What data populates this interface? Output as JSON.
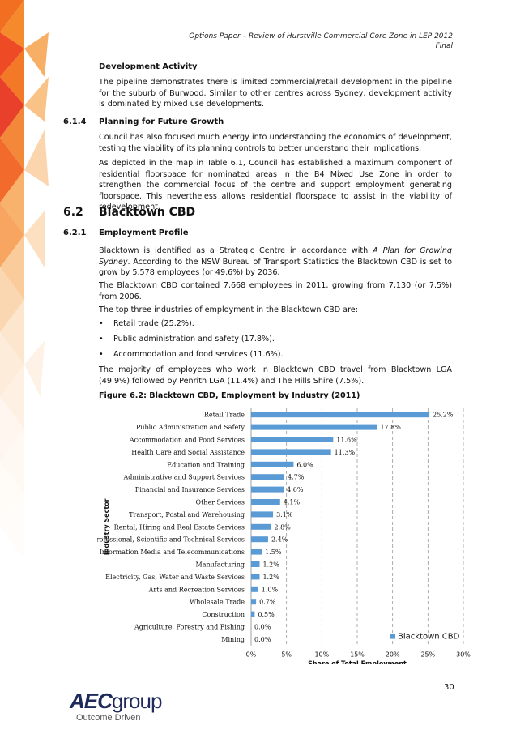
{
  "header": {
    "line1": "Options Paper – Review of Hurstville Commercial Core Zone in LEP 2012",
    "line2": "Final"
  },
  "dev_activity": {
    "heading": "Development Activity",
    "para": "The pipeline demonstrates there is limited commercial/retail development in the pipeline for the suburb of Burwood. Similar to other centres across Sydney, development activity is dominated by mixed use developments."
  },
  "s614": {
    "num": "6.1.4",
    "title": "Planning for Future Growth",
    "para1": "Council has also focused much energy into understanding the economics of development, testing the viability of its planning controls to better understand their implications.",
    "para2": "As depicted in the map in Table 6.1, Council has established a maximum component of residential floorspace for nominated areas in the B4 Mixed Use Zone in order to strengthen the commercial focus of the centre and support employment generating floorspace. This nevertheless allows residential floorspace to assist in the viability of redevelopment."
  },
  "s62": {
    "num": "6.2",
    "title": "Blacktown CBD"
  },
  "s621": {
    "num": "6.2.1",
    "title": "Employment Profile",
    "para1_a": "Blacktown is identified as a Strategic Centre in accordance with ",
    "para1_italic": "A Plan for Growing Sydney",
    "para1_b": ". According to the NSW Bureau of Transport Statistics the Blacktown CBD is set to grow by 5,578 employees (or 49.6%) by 2036.",
    "para2": "The Blacktown CBD contained 7,668 employees in 2011, growing from 7,130 (or 7.5%) from 2006.",
    "para3": "The top three industries of employment in the Blacktown CBD are:",
    "bullets": [
      "Retail trade (25.2%).",
      "Public administration and safety (17.8%).",
      "Accommodation and food services (11.6%)."
    ],
    "para4": "The majority of employees who work in Blacktown CBD travel from Blacktown LGA (49.9%) followed by Penrith LGA (11.4%) and The Hills Shire (7.5%)."
  },
  "figure_caption": "Figure 6.2: Blacktown CBD, Employment by Industry (2011)",
  "chart_data": {
    "type": "bar",
    "orientation": "horizontal",
    "categories": [
      "Retail Trade",
      "Public Administration and Safety",
      "Accommodation and Food Services",
      "Health Care and Social Assistance",
      "Education and Training",
      "Administrative and Support Services",
      "Financial and Insurance Services",
      "Other Services",
      "Transport, Postal and Warehousing",
      "Rental, Hiring and Real Estate Services",
      "Professional, Scientific and Technical Services",
      "Information Media and Telecommunications",
      "Manufacturing",
      "Electricity, Gas, Water and Waste Services",
      "Arts and Recreation Services",
      "Wholesale Trade",
      "Construction",
      "Agriculture, Forestry and Fishing",
      "Mining"
    ],
    "series": [
      {
        "name": "Blacktown CBD",
        "values": [
          25.2,
          17.8,
          11.6,
          11.3,
          6.0,
          4.7,
          4.6,
          4.1,
          3.1,
          2.8,
          2.4,
          1.5,
          1.2,
          1.2,
          1.0,
          0.7,
          0.5,
          0.0,
          0.0
        ]
      }
    ],
    "value_labels": [
      "25.2%",
      "17.8%",
      "11.6%",
      "11.3%",
      "6.0%",
      "4.7%",
      "4.6%",
      "4.1%",
      "3.1%",
      "2.8%",
      "2.4%",
      "1.5%",
      "1.2%",
      "1.2%",
      "1.0%",
      "0.7%",
      "0.5%",
      "0.0%",
      "0.0%"
    ],
    "xticks": [
      "0%",
      "5%",
      "10%",
      "15%",
      "20%",
      "25%",
      "30%"
    ],
    "xlim": [
      0,
      30
    ],
    "xlabel": "Share of Total Employment",
    "ylabel": "Industry Sector",
    "legend": "bottom-right",
    "bar_color": "#5b9bd5",
    "grid": "vertical dashed"
  },
  "footer": {
    "logo_main": "AEC",
    "logo_sub": "group",
    "tagline": "Outcome Driven",
    "page_number": "30"
  },
  "colors": {
    "deco_orange": "#f07c1e",
    "deco_red": "#e8432a",
    "logo_navy": "#1e2a5c"
  }
}
